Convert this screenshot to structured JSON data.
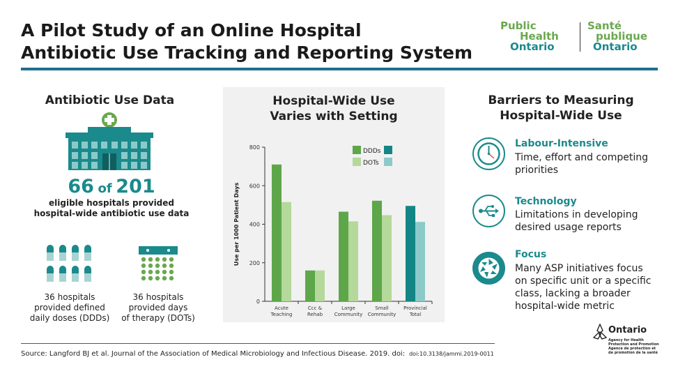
{
  "title": {
    "line1": "A Pilot Study of an Online Hospital",
    "line2": "Antibiotic Use Tracking and Reporting System"
  },
  "logo": {
    "en_line1": "Public",
    "en_line2": "Health",
    "en_line3": "Ontario",
    "fr_line1": "Santé",
    "fr_line2": "publique",
    "fr_line3": "Ontario"
  },
  "left": {
    "heading": "Antibiotic Use Data",
    "count": "66",
    "of": "of",
    "total": "201",
    "sub_line1": "eligible hospitals provided",
    "sub_line2": "hospital-wide antibiotic use data",
    "ddd_line1": "36 hospitals",
    "ddd_line2": "provided defined",
    "ddd_line3": "daily doses (DDDs)",
    "dot_line1": "36 hospitals",
    "dot_line2": "provided days",
    "dot_line3": "of therapy (DOTs)"
  },
  "chart_data": {
    "type": "bar",
    "title": "Hospital-Wide Use Varies with Setting",
    "title_line1": "Hospital-Wide Use",
    "title_line2": "Varies with Setting",
    "ylabel": "Use per 1000 Patient Days",
    "xlabel": "",
    "ylim": [
      0,
      800
    ],
    "yticks": [
      "0",
      "200",
      "400",
      "600",
      "800"
    ],
    "categories": [
      [
        "Acute",
        "Teaching"
      ],
      [
        "Ccc &",
        "Rehab"
      ],
      [
        "Large",
        "Community"
      ],
      [
        "Small",
        "Community"
      ],
      [
        "Provincial",
        "Total"
      ]
    ],
    "series": [
      {
        "name": "DDDs",
        "values": [
          710,
          160,
          465,
          522,
          495
        ]
      },
      {
        "name": "DOTs",
        "values": [
          515,
          160,
          415,
          447,
          412
        ]
      }
    ],
    "colors": {
      "ddd": "#5ea64a",
      "dot": "#b5d89b",
      "ddd_total": "#148585",
      "dot_total": "#8ccac9"
    },
    "legend_position": "top-right",
    "grid": false
  },
  "right": {
    "heading_line1": "Barriers to Measuring",
    "heading_line2": "Hospital-Wide Use",
    "items": [
      {
        "icon": "clock-icon",
        "title": "Labour-Intensive",
        "line1": "Time, effort and competing",
        "line2": "priorities"
      },
      {
        "icon": "usb-icon",
        "title": "Technology",
        "line1": "Limitations in developing",
        "line2": "desired usage reports"
      },
      {
        "icon": "aperture-icon",
        "title": "Focus",
        "line1": "Many ASP initiatives focus",
        "line2": "on specific unit or a specific",
        "line3": "class, lacking a broader",
        "line4": "hospital-wide metric"
      }
    ]
  },
  "footer": {
    "source": "Source: Langford BJ et al. Journal of the Association of Medical Microbiology and Infectious Disease. 2019. doi:",
    "doi": "doi:10.3138/jammi.2019-0011",
    "ontario": "Ontario",
    "agency_line1": "Agency for Health",
    "agency_line2": "Protection and Promotion",
    "agency_line3": "Agence de protection et",
    "agency_line4": "de promotion de la santé"
  },
  "palette": {
    "teal": "#1b8a8c",
    "green": "#6aa84f",
    "rule": "#1e6f8e"
  }
}
